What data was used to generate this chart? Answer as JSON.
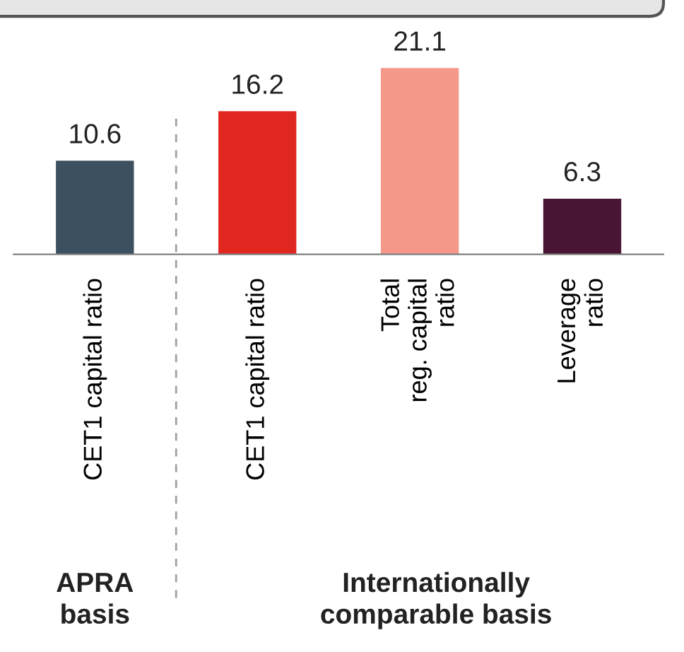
{
  "chart_data": {
    "type": "bar",
    "categories": [
      "CET1 capital ratio",
      "CET1 capital ratio",
      "Total\nreg. capital\nratio",
      "Leverage\nratio"
    ],
    "values": [
      10.6,
      16.2,
      21.1,
      6.3
    ],
    "colors": [
      "#3d5060",
      "#e0271f",
      "#f4998a",
      "#4a1535"
    ],
    "data_labels": true,
    "annotations": [
      "APRA\nbasis",
      "Internationally\ncomparable basis"
    ]
  }
}
